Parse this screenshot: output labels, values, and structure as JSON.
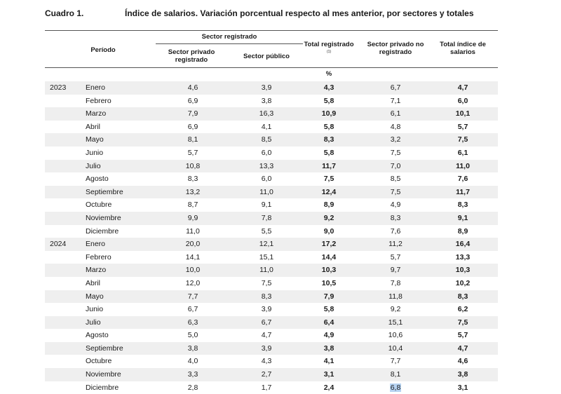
{
  "caption": {
    "label": "Cuadro 1.",
    "title": "Índice de salarios. Variación porcentual respecto al mes anterior, por sectores y totales"
  },
  "headers": {
    "periodo": "Período",
    "sector_registrado": "Sector registrado",
    "privado_registrado": "Sector privado registrado",
    "publico": "Sector público",
    "total_registrado": "Total registrado",
    "total_registrado_note": "(1)",
    "privado_no_registrado": "Sector privado no registrado",
    "total_indice": "Total índice de salarios",
    "unit": "%"
  },
  "highlight_color": "#b7d3f2",
  "rows": [
    {
      "year": "2023",
      "month": "Enero",
      "priv": "4,6",
      "pub": "3,9",
      "total": "4,3",
      "noreg": "6,7",
      "indice": "4,7"
    },
    {
      "year": "",
      "month": "Febrero",
      "priv": "6,9",
      "pub": "3,8",
      "total": "5,8",
      "noreg": "7,1",
      "indice": "6,0"
    },
    {
      "year": "",
      "month": "Marzo",
      "priv": "7,9",
      "pub": "16,3",
      "total": "10,9",
      "noreg": "6,1",
      "indice": "10,1"
    },
    {
      "year": "",
      "month": "Abril",
      "priv": "6,9",
      "pub": "4,1",
      "total": "5,8",
      "noreg": "4,8",
      "indice": "5,7"
    },
    {
      "year": "",
      "month": "Mayo",
      "priv": "8,1",
      "pub": "8,5",
      "total": "8,3",
      "noreg": "3,2",
      "indice": "7,5"
    },
    {
      "year": "",
      "month": "Junio",
      "priv": "5,7",
      "pub": "6,0",
      "total": "5,8",
      "noreg": "7,5",
      "indice": "6,1"
    },
    {
      "year": "",
      "month": "Julio",
      "priv": "10,8",
      "pub": "13,3",
      "total": "11,7",
      "noreg": "7,0",
      "indice": "11,0"
    },
    {
      "year": "",
      "month": "Agosto",
      "priv": "8,3",
      "pub": "6,0",
      "total": "7,5",
      "noreg": "8,5",
      "indice": "7,6"
    },
    {
      "year": "",
      "month": "Septiembre",
      "priv": "13,2",
      "pub": "11,0",
      "total": "12,4",
      "noreg": "7,5",
      "indice": "11,7"
    },
    {
      "year": "",
      "month": "Octubre",
      "priv": "8,7",
      "pub": "9,1",
      "total": "8,9",
      "noreg": "4,9",
      "indice": "8,3"
    },
    {
      "year": "",
      "month": "Noviembre",
      "priv": "9,9",
      "pub": "7,8",
      "total": "9,2",
      "noreg": "8,3",
      "indice": "9,1"
    },
    {
      "year": "",
      "month": "Diciembre",
      "priv": "11,0",
      "pub": "5,5",
      "total": "9,0",
      "noreg": "7,6",
      "indice": "8,9"
    },
    {
      "year": "2024",
      "month": "Enero",
      "priv": "20,0",
      "pub": "12,1",
      "total": "17,2",
      "noreg": "11,2",
      "indice": "16,4"
    },
    {
      "year": "",
      "month": "Febrero",
      "priv": "14,1",
      "pub": "15,1",
      "total": "14,4",
      "noreg": "5,7",
      "indice": "13,3"
    },
    {
      "year": "",
      "month": "Marzo",
      "priv": "10,0",
      "pub": "11,0",
      "total": "10,3",
      "noreg": "9,7",
      "indice": "10,3"
    },
    {
      "year": "",
      "month": "Abril",
      "priv": "12,0",
      "pub": "7,5",
      "total": "10,5",
      "noreg": "7,8",
      "indice": "10,2"
    },
    {
      "year": "",
      "month": "Mayo",
      "priv": "7,7",
      "pub": "8,3",
      "total": "7,9",
      "noreg": "11,8",
      "indice": "8,3"
    },
    {
      "year": "",
      "month": "Junio",
      "priv": "6,7",
      "pub": "3,9",
      "total": "5,8",
      "noreg": "9,2",
      "indice": "6,2"
    },
    {
      "year": "",
      "month": "Julio",
      "priv": "6,3",
      "pub": "6,7",
      "total": "6,4",
      "noreg": "15,1",
      "indice": "7,5"
    },
    {
      "year": "",
      "month": "Agosto",
      "priv": "5,0",
      "pub": "4,7",
      "total": "4,9",
      "noreg": "10,6",
      "indice": "5,7"
    },
    {
      "year": "",
      "month": "Septiembre",
      "priv": "3,8",
      "pub": "3,9",
      "total": "3,8",
      "noreg": "10,4",
      "indice": "4,7"
    },
    {
      "year": "",
      "month": "Octubre",
      "priv": "4,0",
      "pub": "4,3",
      "total": "4,1",
      "noreg": "7,7",
      "indice": "4,6"
    },
    {
      "year": "",
      "month": "Noviembre",
      "priv": "3,3",
      "pub": "2,7",
      "total": "3,1",
      "noreg": "8,1",
      "indice": "3,8"
    },
    {
      "year": "",
      "month": "Diciembre",
      "priv": "2,8",
      "pub": "1,7",
      "total": "2,4",
      "noreg": "6,8",
      "indice": "3,1",
      "noreg_selected": true
    }
  ]
}
